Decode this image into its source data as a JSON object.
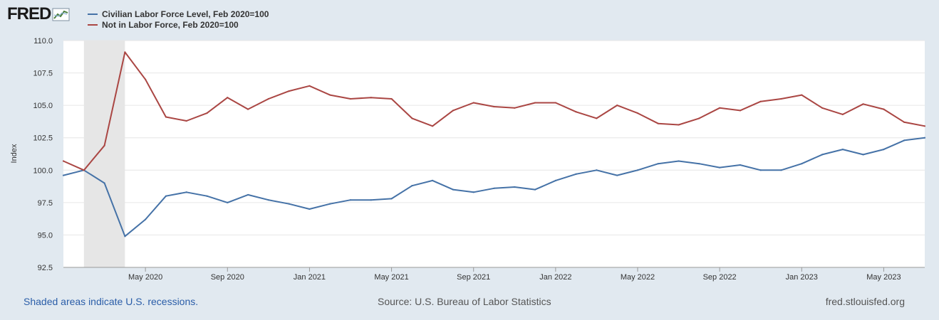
{
  "brand": "FRED",
  "chart_data": {
    "type": "line",
    "title": "",
    "ylabel": "Index",
    "xlabel": "",
    "ylim": [
      92.5,
      110.0
    ],
    "yticks": [
      "92.5",
      "95.0",
      "97.5",
      "100.0",
      "102.5",
      "105.0",
      "107.5",
      "110.0"
    ],
    "x_start": "2020-01",
    "x_ticks": [
      {
        "label": "May 2020",
        "index": 4
      },
      {
        "label": "Sep 2020",
        "index": 8
      },
      {
        "label": "Jan 2021",
        "index": 12
      },
      {
        "label": "May 2021",
        "index": 16
      },
      {
        "label": "Sep 2021",
        "index": 20
      },
      {
        "label": "Jan 2022",
        "index": 24
      },
      {
        "label": "May 2022",
        "index": 28
      },
      {
        "label": "Sep 2022",
        "index": 32
      },
      {
        "label": "Jan 2023",
        "index": 36
      },
      {
        "label": "May 2023",
        "index": 40
      }
    ],
    "recession": {
      "start_index": 1,
      "end_index": 3
    },
    "series": [
      {
        "name": "Civilian Labor Force Level, Feb 2020=100",
        "color": "#4572a7",
        "values": [
          99.6,
          100.0,
          99.0,
          94.9,
          96.2,
          98.0,
          98.3,
          98.0,
          97.5,
          98.1,
          97.7,
          97.4,
          97.0,
          97.4,
          97.7,
          97.7,
          97.8,
          98.8,
          99.2,
          98.5,
          98.3,
          98.6,
          98.7,
          98.5,
          99.2,
          99.7,
          100.0,
          99.6,
          100.0,
          100.5,
          100.7,
          100.5,
          100.2,
          100.4,
          100.0,
          100.0,
          100.5,
          101.2,
          101.6,
          101.2,
          101.6,
          102.3,
          102.5
        ]
      },
      {
        "name": "Not in Labor Force, Feb 2020=100",
        "color": "#aa4643",
        "values": [
          100.7,
          100.0,
          101.9,
          109.1,
          107.0,
          104.1,
          103.8,
          104.4,
          105.6,
          104.7,
          105.5,
          106.1,
          106.5,
          105.8,
          105.5,
          105.6,
          105.5,
          104.0,
          103.4,
          104.6,
          105.2,
          104.9,
          104.8,
          105.2,
          105.2,
          104.5,
          104.0,
          105.0,
          104.4,
          103.6,
          103.5,
          104.0,
          104.8,
          104.6,
          105.3,
          105.5,
          105.8,
          104.8,
          104.3,
          105.1,
          104.7,
          103.7,
          103.4
        ]
      }
    ]
  },
  "footer": {
    "recession_note": "Shaded areas indicate U.S. recessions.",
    "source": "Source: U.S. Bureau of Labor Statistics",
    "site": "fred.stlouisfed.org"
  }
}
